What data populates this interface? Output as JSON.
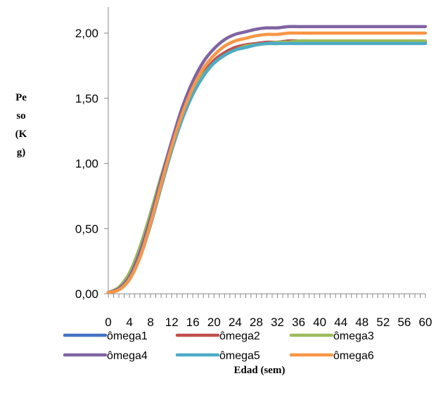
{
  "chart_data": {
    "type": "line",
    "title": "",
    "xlabel": "Edad (sem)",
    "ylabel": "Peso (Kg)",
    "ylabel_lines": [
      "Pe",
      "so",
      "(K",
      "g)"
    ],
    "xlim": [
      0,
      60
    ],
    "ylim": [
      0,
      2.2
    ],
    "x_ticks": [
      0,
      4,
      8,
      12,
      16,
      20,
      24,
      28,
      32,
      36,
      40,
      44,
      48,
      52,
      56,
      60
    ],
    "x_tick_labels": [
      "0",
      "4",
      "8",
      "12",
      "16",
      "20",
      "24",
      "28",
      "32",
      "36",
      "40",
      "44",
      "48",
      "52",
      "56",
      "60"
    ],
    "y_ticks": [
      0,
      0.5,
      1.0,
      1.5,
      2.0
    ],
    "y_tick_labels": [
      "0,00",
      "0,50",
      "1,00",
      "1,50",
      "2,00"
    ],
    "grid": false,
    "legend_position": "bottom",
    "x": [
      0,
      2,
      4,
      6,
      8,
      10,
      12,
      14,
      16,
      18,
      20,
      22,
      24,
      26,
      28,
      30,
      32,
      34,
      36,
      38,
      40,
      42,
      44,
      46,
      48,
      50,
      52,
      54,
      56,
      58,
      60
    ],
    "series": [
      {
        "name": "ômega1",
        "color": "#4472C4",
        "values": [
          0.01,
          0.04,
          0.13,
          0.31,
          0.56,
          0.85,
          1.12,
          1.36,
          1.54,
          1.68,
          1.77,
          1.83,
          1.87,
          1.89,
          1.91,
          1.92,
          1.92,
          1.93,
          1.93,
          1.93,
          1.93,
          1.93,
          1.93,
          1.93,
          1.93,
          1.93,
          1.93,
          1.93,
          1.93,
          1.93,
          1.93
        ]
      },
      {
        "name": "ômega2",
        "color": "#C0504D",
        "values": [
          0.01,
          0.03,
          0.11,
          0.28,
          0.53,
          0.82,
          1.1,
          1.35,
          1.54,
          1.69,
          1.79,
          1.85,
          1.89,
          1.91,
          1.92,
          1.93,
          1.93,
          1.94,
          1.94,
          1.94,
          1.94,
          1.94,
          1.94,
          1.94,
          1.94,
          1.94,
          1.94,
          1.94,
          1.94,
          1.94,
          1.94
        ]
      },
      {
        "name": "ômega3",
        "color": "#9BBB59",
        "values": [
          0.01,
          0.05,
          0.16,
          0.36,
          0.62,
          0.9,
          1.16,
          1.38,
          1.55,
          1.68,
          1.77,
          1.83,
          1.87,
          1.9,
          1.91,
          1.92,
          1.93,
          1.93,
          1.94,
          1.94,
          1.94,
          1.94,
          1.94,
          1.94,
          1.94,
          1.94,
          1.94,
          1.94,
          1.94,
          1.94,
          1.94
        ]
      },
      {
        "name": "ômega4",
        "color": "#8064A2",
        "values": [
          0.01,
          0.04,
          0.13,
          0.32,
          0.58,
          0.88,
          1.17,
          1.43,
          1.63,
          1.78,
          1.88,
          1.95,
          1.99,
          2.01,
          2.03,
          2.04,
          2.04,
          2.05,
          2.05,
          2.05,
          2.05,
          2.05,
          2.05,
          2.05,
          2.05,
          2.05,
          2.05,
          2.05,
          2.05,
          2.05,
          2.05
        ]
      },
      {
        "name": "ômega5",
        "color": "#4BACC6",
        "values": [
          0.01,
          0.03,
          0.11,
          0.28,
          0.53,
          0.82,
          1.1,
          1.34,
          1.53,
          1.67,
          1.77,
          1.83,
          1.87,
          1.89,
          1.91,
          1.92,
          1.92,
          1.92,
          1.92,
          1.92,
          1.92,
          1.92,
          1.92,
          1.92,
          1.92,
          1.92,
          1.92,
          1.92,
          1.92,
          1.92,
          1.92
        ]
      },
      {
        "name": "ômega6",
        "color": "#F79646",
        "values": [
          0.01,
          0.03,
          0.11,
          0.28,
          0.54,
          0.84,
          1.13,
          1.38,
          1.58,
          1.73,
          1.83,
          1.9,
          1.94,
          1.96,
          1.98,
          1.99,
          1.99,
          2.0,
          2.0,
          2.0,
          2.0,
          2.0,
          2.0,
          2.0,
          2.0,
          2.0,
          2.0,
          2.0,
          2.0,
          2.0,
          2.0
        ]
      }
    ]
  }
}
